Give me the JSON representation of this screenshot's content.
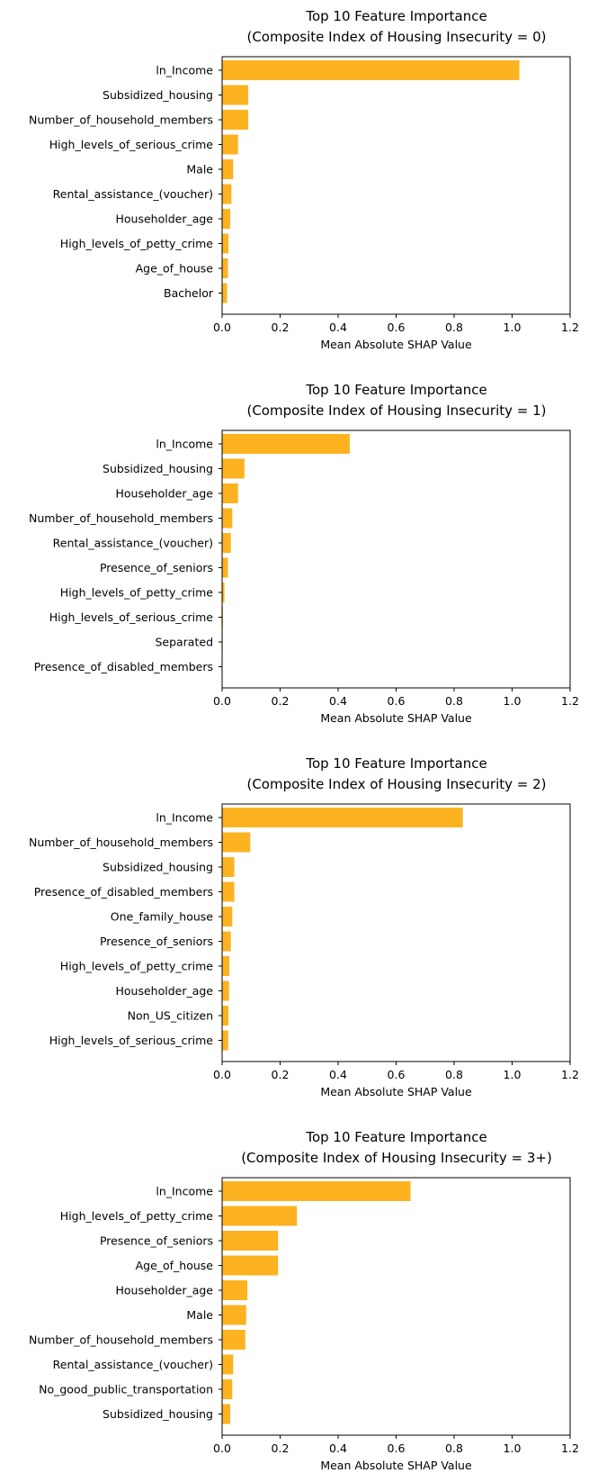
{
  "chart_data": [
    {
      "type": "bar",
      "orientation": "horizontal",
      "title": "Top 10 Feature Importance",
      "subtitle": "(Composite Index of Housing Insecurity = 0)",
      "xlabel": "Mean Absolute SHAP Value",
      "ylabel": "",
      "xlim": [
        0,
        1.2
      ],
      "xticks": [
        "0.0",
        "0.2",
        "0.4",
        "0.6",
        "0.8",
        "1.0",
        "1.2"
      ],
      "xtick_values": [
        0,
        0.2,
        0.4,
        0.6,
        0.8,
        1.0,
        1.2
      ],
      "categories": [
        "ln_Income",
        "Subsidized_housing",
        "Number_of_household_members",
        "High_levels_of_serious_crime",
        "Male",
        "Rental_assistance_(voucher)",
        "Householder_age",
        "High_levels_of_petty_crime",
        "Age_of_house",
        "Bachelor"
      ],
      "values": [
        1.025,
        0.09,
        0.09,
        0.055,
        0.038,
        0.032,
        0.028,
        0.022,
        0.02,
        0.017
      ]
    },
    {
      "type": "bar",
      "orientation": "horizontal",
      "title": "Top 10 Feature Importance",
      "subtitle": "(Composite Index of Housing Insecurity = 1)",
      "xlabel": "Mean Absolute SHAP Value",
      "ylabel": "",
      "xlim": [
        0,
        1.2
      ],
      "xticks": [
        "0.0",
        "0.2",
        "0.4",
        "0.6",
        "0.8",
        "1.0",
        "1.2"
      ],
      "xtick_values": [
        0,
        0.2,
        0.4,
        0.6,
        0.8,
        1.0,
        1.2
      ],
      "categories": [
        "ln_Income",
        "Subsidized_housing",
        "Householder_age",
        "Number_of_household_members",
        "Rental_assistance_(voucher)",
        "Presence_of_seniors",
        "High_levels_of_petty_crime",
        "High_levels_of_serious_crime",
        "Separated",
        "Presence_of_disabled_members"
      ],
      "values": [
        0.44,
        0.077,
        0.055,
        0.035,
        0.03,
        0.02,
        0.008,
        0.003,
        0.002,
        0.001
      ]
    },
    {
      "type": "bar",
      "orientation": "horizontal",
      "title": "Top 10 Feature Importance",
      "subtitle": "(Composite Index of Housing Insecurity = 2)",
      "xlabel": "Mean Absolute SHAP Value",
      "ylabel": "",
      "xlim": [
        0,
        1.2
      ],
      "xticks": [
        "0.0",
        "0.2",
        "0.4",
        "0.6",
        "0.8",
        "1.0",
        "1.2"
      ],
      "xtick_values": [
        0,
        0.2,
        0.4,
        0.6,
        0.8,
        1.0,
        1.2
      ],
      "categories": [
        "ln_Income",
        "Number_of_household_members",
        "Subsidized_housing",
        "Presence_of_disabled_members",
        "One_family_house",
        "Presence_of_seniors",
        "High_levels_of_petty_crime",
        "Householder_age",
        "Non_US_citizen",
        "High_levels_of_serious_crime"
      ],
      "values": [
        0.83,
        0.097,
        0.042,
        0.042,
        0.035,
        0.03,
        0.025,
        0.024,
        0.022,
        0.021
      ]
    },
    {
      "type": "bar",
      "orientation": "horizontal",
      "title": "Top 10 Feature Importance",
      "subtitle": "(Composite Index of Housing Insecurity = 3+)",
      "xlabel": "Mean Absolute SHAP Value",
      "ylabel": "",
      "xlim": [
        0,
        1.2
      ],
      "xticks": [
        "0.0",
        "0.2",
        "0.4",
        "0.6",
        "0.8",
        "1.0",
        "1.2"
      ],
      "xtick_values": [
        0,
        0.2,
        0.4,
        0.6,
        0.8,
        1.0,
        1.2
      ],
      "categories": [
        "ln_Income",
        "High_levels_of_petty_crime",
        "Presence_of_seniors",
        "Age_of_house",
        "Householder_age",
        "Male",
        "Number_of_household_members",
        "Rental_assistance_(voucher)",
        "No_good_public_transportation",
        "Subsidized_housing"
      ],
      "values": [
        0.65,
        0.258,
        0.193,
        0.193,
        0.087,
        0.083,
        0.08,
        0.038,
        0.035,
        0.028
      ]
    }
  ],
  "colors": {
    "bar": "#fdb220",
    "axis": "#000000",
    "background": "#ffffff"
  }
}
